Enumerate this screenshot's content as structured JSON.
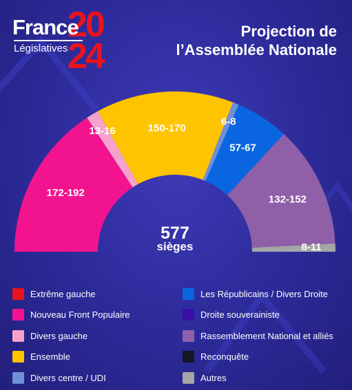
{
  "header": {
    "logo_france": "France",
    "logo_sub": "Législatives",
    "logo_year_top": "20",
    "logo_year_bottom": "24",
    "title_line1": "Projection de",
    "title_line2": "l’Assemblée Nationale"
  },
  "chart_data": {
    "type": "pie",
    "shape": "half-donut",
    "total": 577,
    "center_value": "577",
    "center_label": "sièges",
    "segments": [
      {
        "label": "172-192",
        "group": "Nouveau Front Populaire",
        "value": 182,
        "color": "#f2148f"
      },
      {
        "label": "13-16",
        "group": "Divers gauche",
        "value": 14.5,
        "color": "#f5a3cd"
      },
      {
        "label": "150-170",
        "group": "Ensemble",
        "value": 160,
        "color": "#ffc400"
      },
      {
        "label": "6-8",
        "group": "Divers centre / UDI",
        "value": 7,
        "color": "#6f90d6"
      },
      {
        "label": "57-67",
        "group": "Les Républicains / Divers Droite",
        "value": 62,
        "color": "#0a66e0"
      },
      {
        "label": "132-152",
        "group": "Rassemblement National et alliés",
        "value": 142,
        "color": "#8f5fa8"
      },
      {
        "label": "8-11",
        "group": "Autres",
        "value": 9.5,
        "color": "#a6a6a6"
      }
    ]
  },
  "legend": {
    "left": [
      {
        "label": "Extrême gauche",
        "color": "#e8141e"
      },
      {
        "label": "Nouveau Front Populaire",
        "color": "#f2148f"
      },
      {
        "label": "Divers gauche",
        "color": "#f5a3cd"
      },
      {
        "label": "Ensemble",
        "color": "#ffc400"
      },
      {
        "label": "Divers centre / UDI",
        "color": "#6f90d6"
      }
    ],
    "right": [
      {
        "label": "Les Républicains / Divers Droite",
        "color": "#0a66e0"
      },
      {
        "label": "Droite souverainiste",
        "color": "#3a0fa8"
      },
      {
        "label": "Rassemblement National et alliés",
        "color": "#8f5fa8"
      },
      {
        "label": "Reconquête",
        "color": "#161625"
      },
      {
        "label": "Autres",
        "color": "#a6a6a6"
      }
    ]
  }
}
